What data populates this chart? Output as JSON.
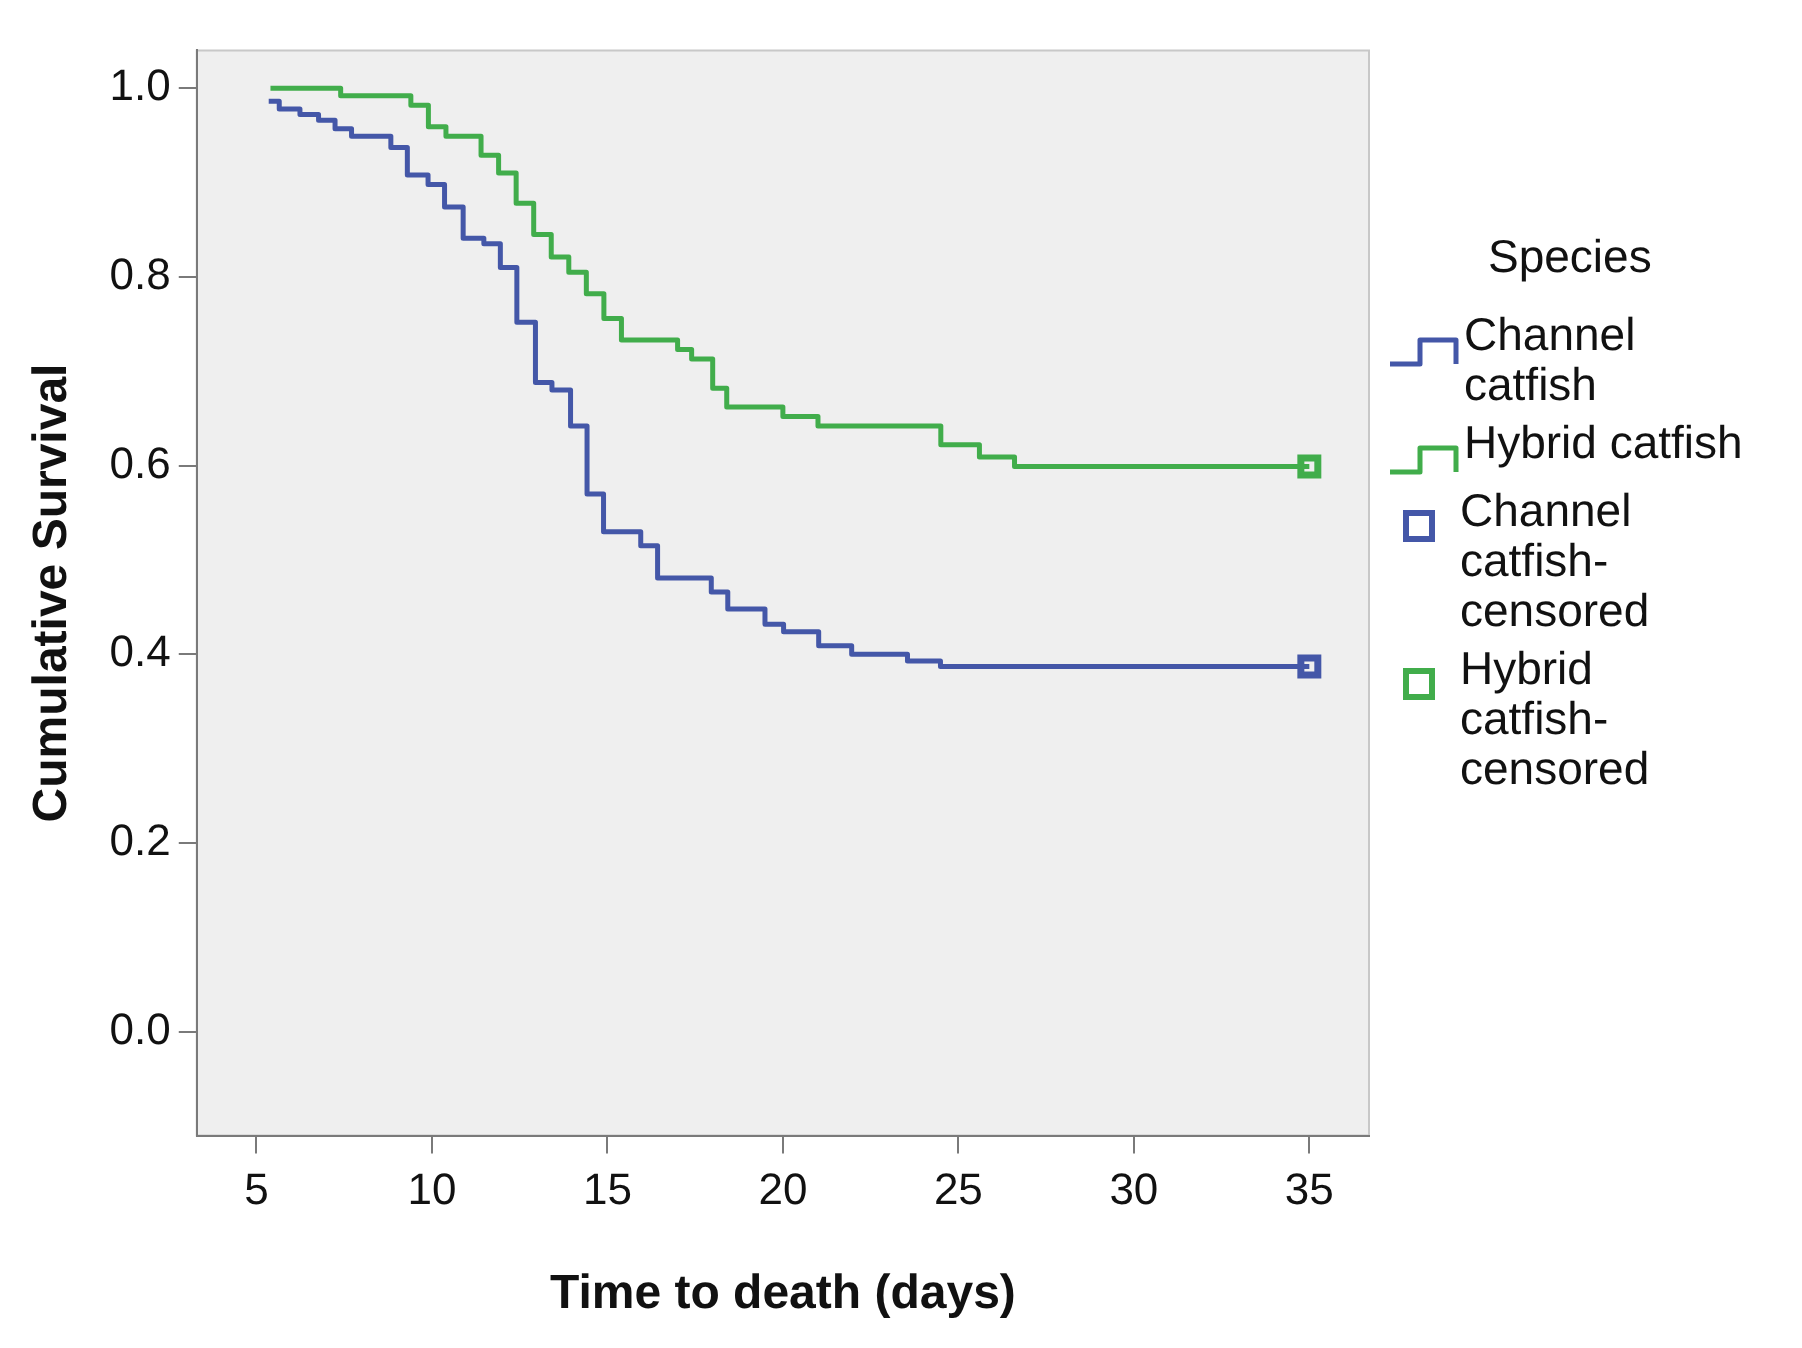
{
  "chart_data": {
    "type": "step",
    "xlabel": "Time to death (days)",
    "ylabel": "Cumulative Survival",
    "legend_title": "Species",
    "legend": "right",
    "xlim": [
      3.3,
      36.7
    ],
    "xticks": [
      5,
      10,
      15,
      20,
      25,
      30,
      35
    ],
    "ylim": [
      -0.11,
      1.04
    ],
    "yticks": [
      {
        "value": 0,
        "label": "0.0"
      },
      {
        "value": 0.2,
        "label": "0.2"
      },
      {
        "value": 0.4,
        "label": "0.4"
      },
      {
        "value": 0.6,
        "label": "0.6"
      },
      {
        "value": 0.8,
        "label": "0.8"
      },
      {
        "value": 1,
        "label": "1.0"
      }
    ],
    "series": [
      {
        "name": "Channel catfish",
        "color": "#4457a8",
        "x": [
          5.35,
          5.65,
          6.24,
          6.77,
          7.24,
          7.71,
          8.83,
          9.3,
          9.89,
          10.36,
          10.89,
          11.48,
          11.95,
          12.42,
          12.95,
          13.42,
          13.95,
          14.42,
          14.89,
          15.95,
          16.43,
          17.96,
          18.43,
          19.49,
          20.02,
          21.02,
          21.96,
          23.55,
          24.49,
          35
        ],
        "values": [
          0.986,
          0.978,
          0.972,
          0.966,
          0.957,
          0.949,
          0.937,
          0.908,
          0.898,
          0.874,
          0.841,
          0.835,
          0.81,
          0.752,
          0.688,
          0.68,
          0.642,
          0.57,
          0.53,
          0.515,
          0.481,
          0.466,
          0.448,
          0.432,
          0.424,
          0.409,
          0.4,
          0.393,
          0.387,
          0.387
        ]
      },
      {
        "name": "Hybrid catfish",
        "color": "#41ad4b",
        "x": [
          5.4,
          7.4,
          9.4,
          9.9,
          10.4,
          11.4,
          11.9,
          12.4,
          12.9,
          13.4,
          13.9,
          14.4,
          14.9,
          15.4,
          17.0,
          17.4,
          18.0,
          18.4,
          20.0,
          21.0,
          24.5,
          25.6,
          26.6,
          35
        ],
        "values": [
          1.0,
          0.992,
          0.982,
          0.959,
          0.949,
          0.929,
          0.91,
          0.878,
          0.845,
          0.821,
          0.805,
          0.782,
          0.756,
          0.733,
          0.723,
          0.713,
          0.682,
          0.662,
          0.652,
          0.642,
          0.622,
          0.609,
          0.599,
          0.599
        ]
      },
      {
        "name": "Channel catfish-censored",
        "type": "scatter",
        "marker": "square",
        "color": "#4457a8",
        "x": [
          35
        ],
        "values": [
          0.387
        ]
      },
      {
        "name": "Hybrid catfish-censored",
        "type": "scatter",
        "marker": "square",
        "color": "#41ad4b",
        "x": [
          35
        ],
        "values": [
          0.599
        ]
      }
    ]
  }
}
